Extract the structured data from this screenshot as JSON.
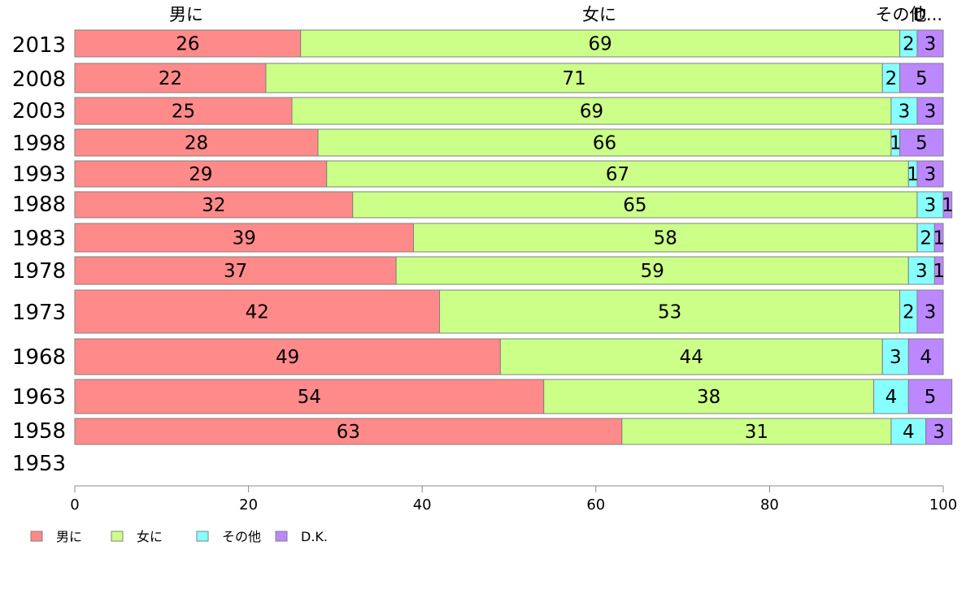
{
  "chart_data": {
    "type": "bar",
    "orientation": "horizontal",
    "stacked": true,
    "categories": [
      "2013",
      "2008",
      "2003",
      "1998",
      "1993",
      "1988",
      "1983",
      "1978",
      "1973",
      "1968",
      "1963",
      "1958",
      "1953"
    ],
    "series": [
      {
        "name": "男に",
        "color": "#FF8A8A",
        "values": [
          26,
          22,
          25,
          28,
          29,
          32,
          39,
          37,
          42,
          49,
          54,
          63,
          null
        ]
      },
      {
        "name": "女に",
        "color": "#CCFF88",
        "values": [
          69,
          71,
          69,
          66,
          67,
          65,
          58,
          59,
          53,
          44,
          38,
          31,
          null
        ]
      },
      {
        "name": "その他",
        "color": "#88FFFF",
        "values": [
          2,
          2,
          3,
          1,
          1,
          3,
          2,
          3,
          2,
          3,
          4,
          4,
          null
        ]
      },
      {
        "name": "D.K.",
        "color": "#BB88FF",
        "values": [
          3,
          5,
          3,
          5,
          3,
          1,
          1,
          1,
          3,
          4,
          5,
          3,
          null
        ]
      }
    ],
    "column_headers": [
      "男に",
      "女に",
      "その他",
      "D..."
    ],
    "x_ticks": [
      0,
      20,
      40,
      60,
      80,
      100
    ],
    "xlim": [
      0,
      100
    ],
    "legend_position": "bottom-left",
    "grid": false
  }
}
